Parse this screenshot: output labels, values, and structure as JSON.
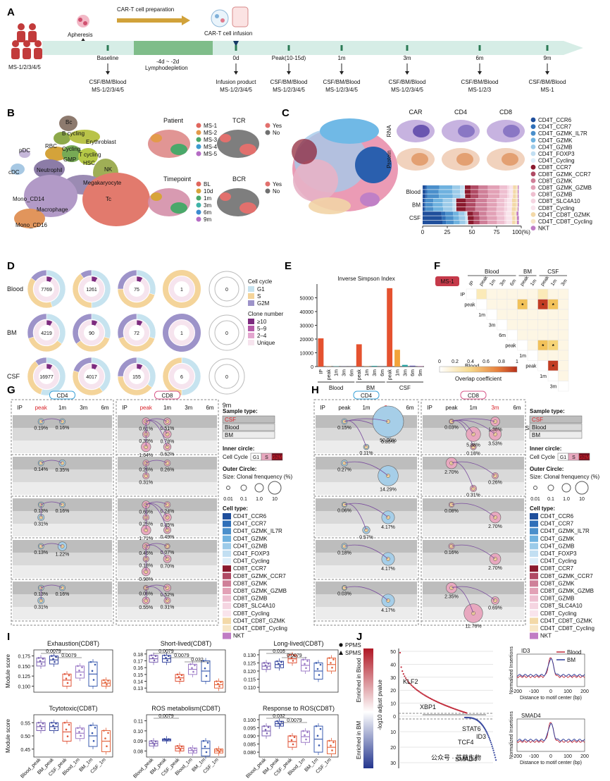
{
  "panels": {
    "A": {
      "label": "A",
      "prep": "CAR-T cell preparation",
      "apheresis": "Apheresis",
      "infusion": "CAR-T cell infusion",
      "lympho_top": "-4d ~ -2d",
      "lympho_bottom": "Lymphodepletion",
      "patients": "MS-1/2/3/4/5",
      "timepoints": [
        {
          "name": "Baseline",
          "line1": "CSF/BM/Blood",
          "line2": "MS-1/2/3/4/5"
        },
        {
          "name": "0d",
          "line1": "Infusion product",
          "line2": "MS-1/2/3/4/5"
        },
        {
          "name": "Peak(10-15d)",
          "line1": "CSF/BM/Blood",
          "line2": "MS-1/2/3/4/5"
        },
        {
          "name": "1m",
          "line1": "CSF/BM/Blood",
          "line2": "MS-1/2/3/4/5"
        },
        {
          "name": "3m",
          "line1": "CSF/BM/Blood",
          "line2": "MS-1/2/3/4/5"
        },
        {
          "name": "6m",
          "line1": "CSF/BM/Blood",
          "line2": "MS-1/2/3"
        },
        {
          "name": "9m",
          "line1": "CSF/BM/Blood",
          "line2": "MS-1"
        }
      ]
    },
    "B": {
      "label": "B",
      "clusters": [
        "Bc",
        "B cycling",
        "RBC",
        "Erythroblast",
        "Cycling",
        "GMP",
        "T cycling",
        "HSC",
        "pDC",
        "cDC",
        "Neutrophil",
        "NK",
        "Megakaryocyte",
        "Tc",
        "Mono_CD14",
        "Macrophage",
        "Mono_CD16"
      ],
      "patient_title": "Patient",
      "patient_legend": [
        "MS-1",
        "MS-2",
        "MS-3",
        "MS-4",
        "MS-5"
      ],
      "tcr_title": "TCR",
      "yes_no": [
        "Yes",
        "No"
      ],
      "timepoint_title": "Timepoint",
      "timepoint_legend": [
        "BL",
        "10d",
        "1m",
        "3m",
        "6m",
        "9m"
      ],
      "bcr_title": "BCR"
    },
    "C": {
      "label": "C",
      "feature_titles": [
        "CAR",
        "CD4",
        "CD8"
      ],
      "row_labels": [
        "RNA",
        "Protein"
      ],
      "bar_groups": [
        "Blood",
        "BM",
        "CSF"
      ],
      "axis_ticks": [
        "0",
        "25",
        "50",
        "75",
        "100(%)"
      ],
      "celltypes": [
        "CD4T_CCR6",
        "CD4T_CCR7",
        "CD4T_GZMK_IL7R",
        "CD4T_GZMK",
        "CD4T_GZMB",
        "CD4T_FOXP3",
        "CD4T_Cycling",
        "CD8T_CCR7",
        "CD8T_GZMK_CCR7",
        "CD8T_GZMK",
        "CD8T_GZMK_GZMB",
        "CD8T_GZMB",
        "CD8T_SLC4A10",
        "CD8T_Cycling",
        "CD4T_CD8T_GZMK",
        "CD4T_CD8T_Cycling",
        "NKT"
      ],
      "celltype_colors": [
        "#1f4f9c",
        "#2f6fb8",
        "#4a8fcb",
        "#6fb2df",
        "#9ccbe9",
        "#c2dff2",
        "#deeef9",
        "#8b1a2e",
        "#b04a64",
        "#cf7f98",
        "#e2a1b6",
        "#eebfd0",
        "#f5d5e1",
        "#f9e4ec",
        "#f3d9a8",
        "#f7e6c6",
        "#c07cc4"
      ]
    },
    "D": {
      "label": "D",
      "rows": [
        "Blood",
        "BM",
        "CSF"
      ],
      "cols": [
        "peak",
        "1m",
        "3m",
        "6m",
        "9m"
      ],
      "counts": [
        [
          "7769",
          "1261",
          "75",
          "1",
          "0"
        ],
        [
          "4219",
          "90",
          "72",
          "1",
          "0"
        ],
        [
          "16977",
          "4017",
          "155",
          "6",
          "0"
        ]
      ],
      "cellcycle_title": "Cell cycle",
      "cellcycle": [
        "G1",
        "S",
        "G2M"
      ],
      "clone_title": "Clone number",
      "clones": [
        "≥10",
        "5–9",
        "2–4",
        "Unique"
      ]
    },
    "E": {
      "label": "E",
      "chart_data": {
        "type": "bar",
        "title": "Inverse Simpson Index",
        "categories": [
          "IP",
          "peak",
          "1m",
          "3m",
          "6m",
          "peak",
          "1m",
          "3m",
          "6m",
          "peak",
          "1m",
          "3m",
          "6m",
          "9m"
        ],
        "groups": [
          "Blood",
          "BM",
          "CSF"
        ],
        "group_index": [
          0,
          0,
          0,
          0,
          0,
          1,
          1,
          1,
          1,
          2,
          2,
          2,
          2,
          2
        ],
        "values": [
          20500,
          150,
          200,
          100,
          50,
          16200,
          150,
          500,
          50,
          57000,
          12200,
          1200,
          600,
          200
        ],
        "colors": [
          "#e5522f",
          "#f2a33a",
          "#2aa3a3",
          "#5b4fa8",
          "#b03a9b"
        ],
        "ylim": [
          0,
          60000
        ],
        "yticks": [
          "0",
          "10000",
          "20000",
          "30000",
          "40000",
          "50000"
        ]
      }
    },
    "F": {
      "label": "F",
      "sample": "MS-1",
      "col_groups": [
        "Blood",
        "BM",
        "CSF"
      ],
      "cols": [
        "IP",
        "peak",
        "1m",
        "3m",
        "6m",
        "peak",
        "1m",
        "peak",
        "1m",
        "3m"
      ],
      "rows": [
        "IP",
        "peak",
        "1m",
        "3m",
        "6m",
        "peak",
        "1m",
        "peak",
        "1m",
        "3m"
      ],
      "row_groups": [
        "Blood",
        "BM",
        "CSF"
      ],
      "colorbar_ticks": [
        "0",
        "0.2",
        "0.4",
        "0.6",
        "0.8",
        "1"
      ],
      "colorbar_title": "Overlap coefficient",
      "star": "*"
    },
    "G": {
      "label": "G",
      "cd4": "CD4",
      "cd8": "CD8",
      "cols": [
        "IP",
        "peak",
        "1m",
        "3m",
        "6m"
      ],
      "cd4_labels": [
        [
          "0.19%",
          "0.16%"
        ],
        [
          "0.14%",
          "0.35%"
        ],
        [
          "0.13%",
          "0.16%",
          "0.31%"
        ],
        [
          "0.13%",
          "1.22%"
        ],
        [
          "0.13%",
          "0.16%",
          "0.31%"
        ]
      ],
      "cd8_labels": [
        [
          "0.61%",
          "0.51%",
          "0.39%",
          "0.78%",
          "1.64%",
          "0.62%"
        ],
        [
          "0.26%",
          "0.26%",
          "0.31%"
        ],
        [
          "0.69%",
          "0.24%",
          "0.25%",
          "0.85%",
          "1.71%",
          "0.49%"
        ],
        [
          "0.46%",
          "0.07%",
          "0.18%",
          "0.70%",
          "0.98%"
        ],
        [
          "0.06%",
          "0.52%",
          "0.55%",
          "0.31%"
        ]
      ]
    },
    "H": {
      "label": "H",
      "cd4": "CD4",
      "cd8": "CD8",
      "cols": [
        "IP",
        "peak",
        "1m",
        "3m",
        "6m"
      ],
      "cd4_labels": [
        [
          "0.15%",
          "0.85%",
          "0.11%",
          "50.00%"
        ],
        [
          "0.27%",
          "14.29%"
        ],
        [
          "0.06%",
          "4.17%",
          "0.57%"
        ],
        [
          "0.18%",
          "4.17%"
        ],
        [
          "0.03%",
          "4.17%"
        ]
      ],
      "cd8_labels": [
        [
          "0.03%",
          "3.53%",
          "0.18%",
          "1.38%",
          "5.88%"
        ],
        [
          "2.70%",
          "0.26%",
          "0.31%"
        ],
        [
          "0.08%",
          "2.70%"
        ],
        [
          "0.16%",
          "2.70%"
        ],
        [
          "2.35%",
          "0.69%",
          "11.76%"
        ]
      ]
    },
    "legend_GH": {
      "sample_title": "Sample type:",
      "samples": [
        "CSF",
        "Blood",
        "BM"
      ],
      "inner_title": "Inner circle:",
      "cellcycle_label": "Cell Cycle",
      "cycle_boxes": [
        "G1",
        "S",
        "G2M"
      ],
      "outer_title": "Outer Circle:",
      "outer_sub": "Size: Clonal frenquency (%)",
      "size_ticks": [
        "0.01",
        "0.1",
        "1.0",
        "10"
      ],
      "celltype_title": "Cell type:"
    },
    "I": {
      "label": "I",
      "ylabel": "Module score",
      "xcats": [
        "Blood_peak",
        "BM_peak",
        "CSF_peak",
        "Blood_1m",
        "BM_1m",
        "CSF_1m"
      ],
      "shape_legend": [
        "PPMS",
        "SPMS"
      ],
      "plots": [
        {
          "title": "Exhaustion(CD8T)",
          "pvals": [
            "0.0079",
            "0.0079"
          ],
          "yticks": [
            "0.100",
            "0.125",
            "0.150",
            "0.175"
          ]
        },
        {
          "title": "Short-lived(CD8T)",
          "pvals": [
            "0.0079",
            "0.0079",
            "0.032"
          ],
          "yticks": [
            "0.13",
            "0.14",
            "0.15",
            "0.16",
            "0.17",
            "0.18"
          ]
        },
        {
          "title": "Long-lived(CD8T)",
          "pvals": [
            "0.016",
            "0.0079"
          ],
          "yticks": [
            "0.110",
            "0.115",
            "0.120",
            "0.125",
            "0.130"
          ]
        },
        {
          "title": "Tcytotoxic(CD8T)",
          "pvals": [],
          "yticks": [
            "0.45",
            "0.50",
            "0.55"
          ]
        },
        {
          "title": "ROS metabolism(CD8T)",
          "pvals": [
            "0.0079"
          ],
          "yticks": [
            "0.08",
            "0.09",
            "0.10",
            "0.11"
          ]
        },
        {
          "title": "Response to ROS(CD8T)",
          "pvals": [
            "0.032",
            "0.0079"
          ],
          "yticks": [
            "0.080",
            "0.085",
            "0.090",
            "0.095",
            "0.100"
          ]
        }
      ]
    },
    "J": {
      "label": "J",
      "enriched_blood": "Enriched in Blood",
      "enriched_bm": "Enriched in BM",
      "ylabel": "-log10 adjust pvalue",
      "yticks_top": [
        "50",
        "40",
        "30",
        "20",
        "10",
        "0"
      ],
      "yticks_bottom": [
        "10",
        "20",
        "30"
      ],
      "genes": [
        "KLF2",
        "XBP1",
        "STAT6",
        "ID3",
        "TCF4",
        "SMAD4"
      ],
      "track1": "ID3",
      "track2": "SMAD4",
      "track_legend": [
        "Blood",
        "BM"
      ],
      "track_ylabel": "Normalized Insertions",
      "track_xlabel": "Distance to motif center (bp)",
      "track_xticks": [
        "-200",
        "-100",
        "0",
        "100",
        "200"
      ],
      "watermark": "公众号 · 芯萌生物"
    }
  }
}
